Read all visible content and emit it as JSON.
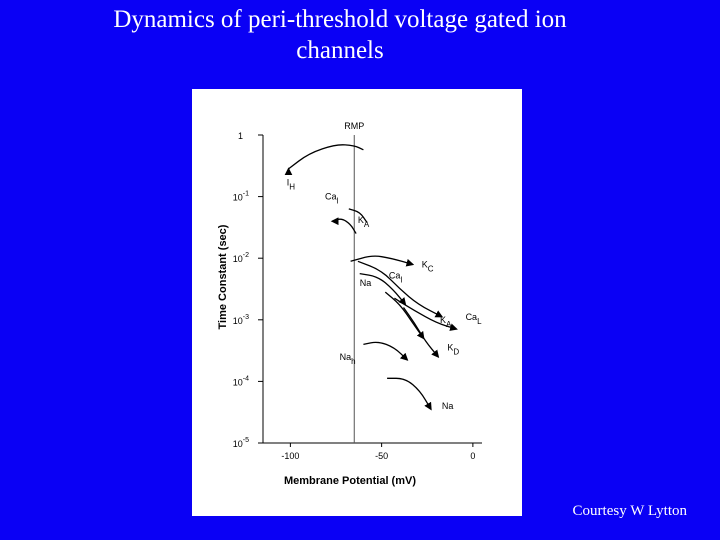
{
  "slide": {
    "title": "Dynamics of peri-threshold voltage gated ion\nchannels",
    "credit": "Courtesy W Lytton",
    "background_color": "#0a00f5"
  },
  "chart_data": {
    "type": "line",
    "xlabel": "Membrane Potential (mV)",
    "ylabel": "Time Constant (sec)",
    "xlim": [
      -115,
      5
    ],
    "ylim_log10": [
      -5,
      0
    ],
    "y_scale": "log",
    "x_ticks": [
      -100,
      -50,
      0
    ],
    "y_ticks": [
      {
        "label": "1",
        "log10": 0
      },
      {
        "label": "10",
        "exponent": "-1",
        "log10": -1
      },
      {
        "label": "10",
        "exponent": "-2",
        "log10": -2
      },
      {
        "label": "10",
        "exponent": "-3",
        "log10": -3
      },
      {
        "label": "10",
        "exponent": "-4",
        "log10": -4
      },
      {
        "label": "10",
        "exponent": "-5",
        "log10": -5
      }
    ],
    "marker": {
      "label": "RMP",
      "x": -65
    },
    "series": [
      {
        "name": "I",
        "subscript": "H",
        "points": [
          [
            -101,
            -0.55
          ],
          [
            -90,
            -0.3
          ],
          [
            -75,
            -0.15
          ],
          [
            -65,
            -0.17
          ],
          [
            -60,
            -0.24
          ]
        ],
        "label_at": [
          -102,
          -0.82
        ],
        "arrow": "start"
      },
      {
        "name": "Ca",
        "subscript": "l",
        "points": [
          [
            -68,
            -1.2
          ],
          [
            -62,
            -1.25
          ],
          [
            -58,
            -1.42
          ]
        ],
        "label_at": [
          -81,
          -1.05
        ],
        "arrow": "none"
      },
      {
        "name": "K",
        "subscript": "A",
        "points": [
          [
            -77,
            -1.4
          ],
          [
            -72,
            -1.35
          ],
          [
            -67,
            -1.45
          ],
          [
            -64,
            -1.6
          ]
        ],
        "label_at": [
          -63,
          -1.43
        ],
        "arrow": "start"
      },
      {
        "name": "K",
        "subscript": "C",
        "points": [
          [
            -67,
            -2.05
          ],
          [
            -55,
            -1.95
          ],
          [
            -45,
            -2.0
          ],
          [
            -33,
            -2.1
          ]
        ],
        "label_at": [
          -28,
          -2.15
        ],
        "arrow": "end"
      },
      {
        "name": "Ca",
        "subscript": "l",
        "points": [
          [
            -63,
            -2.05
          ],
          [
            -50,
            -2.2
          ],
          [
            -40,
            -2.5
          ],
          [
            -30,
            -2.75
          ],
          [
            -17,
            -2.95
          ]
        ],
        "label_at": [
          -46,
          -2.33
        ],
        "arrow": "end"
      },
      {
        "name": "Na",
        "subscript": "",
        "points": [
          [
            -62,
            -2.25
          ],
          [
            -52,
            -2.3
          ],
          [
            -44,
            -2.5
          ],
          [
            -37,
            -2.75
          ]
        ],
        "label_at": [
          -62,
          -2.45
        ],
        "arrow": "end"
      },
      {
        "name": "K",
        "subscript": "A",
        "points": [
          [
            -48,
            -2.55
          ],
          [
            -40,
            -2.75
          ],
          [
            -33,
            -3.05
          ],
          [
            -27,
            -3.3
          ]
        ],
        "label_at": [
          -18,
          -3.05
        ],
        "arrow": "end"
      },
      {
        "name": "Ca",
        "subscript": "L",
        "points": [
          [
            -43,
            -2.65
          ],
          [
            -32,
            -2.85
          ],
          [
            -20,
            -3.05
          ],
          [
            -9,
            -3.15
          ]
        ],
        "label_at": [
          -4,
          -3.0
        ],
        "arrow": "end"
      },
      {
        "name": "K",
        "subscript": "D",
        "points": [
          [
            -38,
            -2.8
          ],
          [
            -32,
            -3.05
          ],
          [
            -26,
            -3.35
          ],
          [
            -19,
            -3.6
          ]
        ],
        "label_at": [
          -14,
          -3.5
        ],
        "arrow": "end"
      },
      {
        "name": "Na",
        "subscript": "h",
        "points": [
          [
            -60,
            -3.4
          ],
          [
            -52,
            -3.35
          ],
          [
            -43,
            -3.45
          ],
          [
            -36,
            -3.65
          ]
        ],
        "label_at": [
          -73,
          -3.65
        ],
        "arrow": "end"
      },
      {
        "name": "Na",
        "subscript": "",
        "points": [
          [
            -47,
            -3.95
          ],
          [
            -37,
            -3.95
          ],
          [
            -29,
            -4.15
          ],
          [
            -23,
            -4.45
          ]
        ],
        "label_at": [
          -17,
          -4.45
        ],
        "arrow": "end"
      }
    ]
  }
}
